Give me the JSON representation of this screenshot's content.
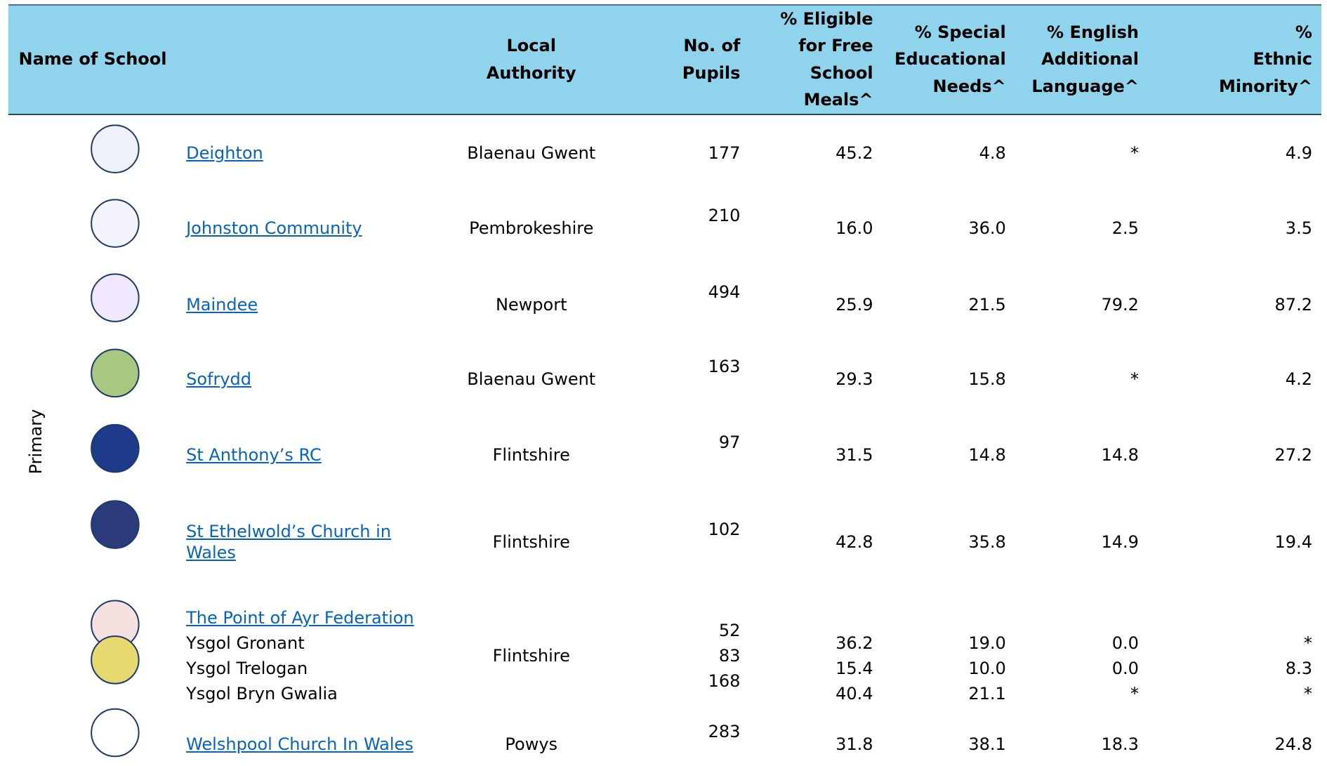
{
  "table": {
    "headers": [
      [
        "Name of School"
      ],
      [
        "Local",
        "Authority"
      ],
      [
        "No. of",
        "Pupils"
      ],
      [
        "% Eligible",
        "for Free",
        "School",
        "Meals^"
      ],
      [
        "% Special",
        "Educational",
        "Needs^"
      ],
      [
        "% English",
        "Additional",
        "Language^"
      ],
      [
        "%",
        "Ethnic",
        "Minority^"
      ]
    ],
    "section": "Primary",
    "rows": [
      {
        "name": "Deighton",
        "authority": "Blaenau Gwent",
        "pupils": "177",
        "fsm": "45.2",
        "sen": "4.8",
        "eal": "*",
        "ethnic": "4.9"
      },
      {
        "name": "Johnston Community",
        "authority": "Pembrokeshire",
        "pupils": "210",
        "fsm": "16.0",
        "sen": "36.0",
        "eal": "2.5",
        "ethnic": "3.5"
      },
      {
        "name": "Maindee",
        "authority": "Newport",
        "pupils": "494",
        "fsm": "25.9",
        "sen": "21.5",
        "eal": "79.2",
        "ethnic": "87.2"
      },
      {
        "name": "Sofrydd",
        "authority": "Blaenau Gwent",
        "pupils": "163",
        "fsm": "29.3",
        "sen": "15.8",
        "eal": "*",
        "ethnic": "4.2"
      },
      {
        "name": "St Anthony’s RC",
        "authority": "Flintshire",
        "pupils": "97",
        "fsm": "31.5",
        "sen": "14.8",
        "eal": "14.8",
        "ethnic": "27.2"
      },
      {
        "name": "St Ethelwold’s Church in Wales",
        "authority": "Flintshire",
        "pupils": "102",
        "fsm": "42.8",
        "sen": "35.8",
        "eal": "14.9",
        "ethnic": "19.4"
      }
    ],
    "federation": {
      "name": "The Point of Ayr Federation",
      "authority": "Flintshire",
      "schools": [
        {
          "name": "Ysgol Gronant",
          "pupils": "52",
          "fsm": "36.2",
          "sen": "19.0",
          "eal": "0.0",
          "ethnic": "*"
        },
        {
          "name": "Ysgol Trelogan",
          "pupils": "83",
          "fsm": "15.4",
          "sen": "10.0",
          "eal": "0.0",
          "ethnic": "8.3"
        },
        {
          "name": "Ysgol Bryn Gwalia",
          "pupils": "168",
          "fsm": "40.4",
          "sen": "21.1",
          "eal": "*",
          "ethnic": "*"
        }
      ]
    },
    "last_row": {
      "name": "Welshpool Church In Wales",
      "authority": "Powys",
      "pupils": "283",
      "fsm": "31.8",
      "sen": "38.1",
      "eal": "18.3",
      "ethnic": "24.8"
    }
  }
}
